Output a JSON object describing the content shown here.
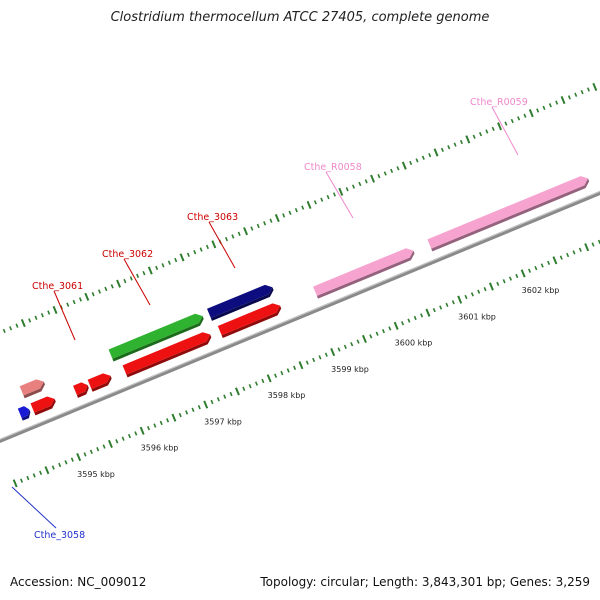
{
  "title": "Clostridium thermocellum ATCC 27405, complete genome",
  "footer": {
    "accession": "Accession: NC_009012",
    "summary": "Topology: circular; Length: 3,843,301 bp; Genes: 3,259"
  },
  "colors": {
    "backbone": "#8a8a8a",
    "tick": "#2f7d2f",
    "label_red": "#cc0000",
    "label_pink": "#ee88cc",
    "label_blue": "#2233cc"
  },
  "scale": {
    "unit": "kbp",
    "labels": [
      {
        "kbp": 3595,
        "text": "3595 kbp"
      },
      {
        "kbp": 3596,
        "text": "3596 kbp"
      },
      {
        "kbp": 3597,
        "text": "3597 kbp"
      },
      {
        "kbp": 3598,
        "text": "3598 kbp"
      },
      {
        "kbp": 3599,
        "text": "3599 kbp"
      },
      {
        "kbp": 3600,
        "text": "3600 kbp"
      },
      {
        "kbp": 3601,
        "text": "3601 kbp"
      },
      {
        "kbp": 3602,
        "text": "3602 kbp"
      }
    ]
  },
  "genes": [
    {
      "id": "Cthe_3058",
      "label": "Cthe_3058",
      "label_color": "blue",
      "fill": "#1a1ad6",
      "strand": "plus-inner",
      "start_kbp": 3594.45,
      "end_kbp": 3594.6
    },
    {
      "id": "unlabeled_pink",
      "label": "",
      "fill": "#e88080",
      "strand": "plus-outer",
      "start_kbp": 3594.6,
      "end_kbp": 3594.95
    },
    {
      "id": "unlabeled_red_1",
      "label": "",
      "fill": "#ee1111",
      "strand": "plus-inner",
      "start_kbp": 3594.65,
      "end_kbp": 3595.0
    },
    {
      "id": "Cthe_3061",
      "label": "Cthe_3061",
      "label_color": "red",
      "fill": "#ee1111",
      "strand": "plus-inner",
      "start_kbp": 3595.32,
      "end_kbp": 3595.52
    },
    {
      "id": "unlabeled_red_2",
      "label": "",
      "fill": "#ee1111",
      "strand": "plus-inner",
      "start_kbp": 3595.55,
      "end_kbp": 3595.88
    },
    {
      "id": "Cthe_3062",
      "label": "Cthe_3062",
      "label_color": "red",
      "fill": "#2fb22f",
      "strand": "plus-outer",
      "start_kbp": 3596.0,
      "end_kbp": 3597.45
    },
    {
      "id": "Cthe_3062_red",
      "label": "",
      "fill": "#ee1111",
      "strand": "plus-inner",
      "start_kbp": 3596.1,
      "end_kbp": 3597.45
    },
    {
      "id": "Cthe_3063",
      "label": "Cthe_3063",
      "label_color": "red",
      "fill": "#0d0d80",
      "strand": "plus-outer",
      "start_kbp": 3597.55,
      "end_kbp": 3598.55
    },
    {
      "id": "Cthe_3063_red",
      "label": "",
      "fill": "#ee1111",
      "strand": "plus-inner",
      "start_kbp": 3597.6,
      "end_kbp": 3598.55
    },
    {
      "id": "Cthe_R0058",
      "label": "Cthe_R0058",
      "label_color": "pink",
      "fill": "#f7a3cf",
      "strand": "plus-inner",
      "start_kbp": 3599.1,
      "end_kbp": 3600.65
    },
    {
      "id": "Cthe_R0059",
      "label": "Cthe_R0059",
      "label_color": "pink",
      "fill": "#f7a3cf",
      "strand": "plus-inner",
      "start_kbp": 3600.9,
      "end_kbp": 3603.4
    }
  ]
}
